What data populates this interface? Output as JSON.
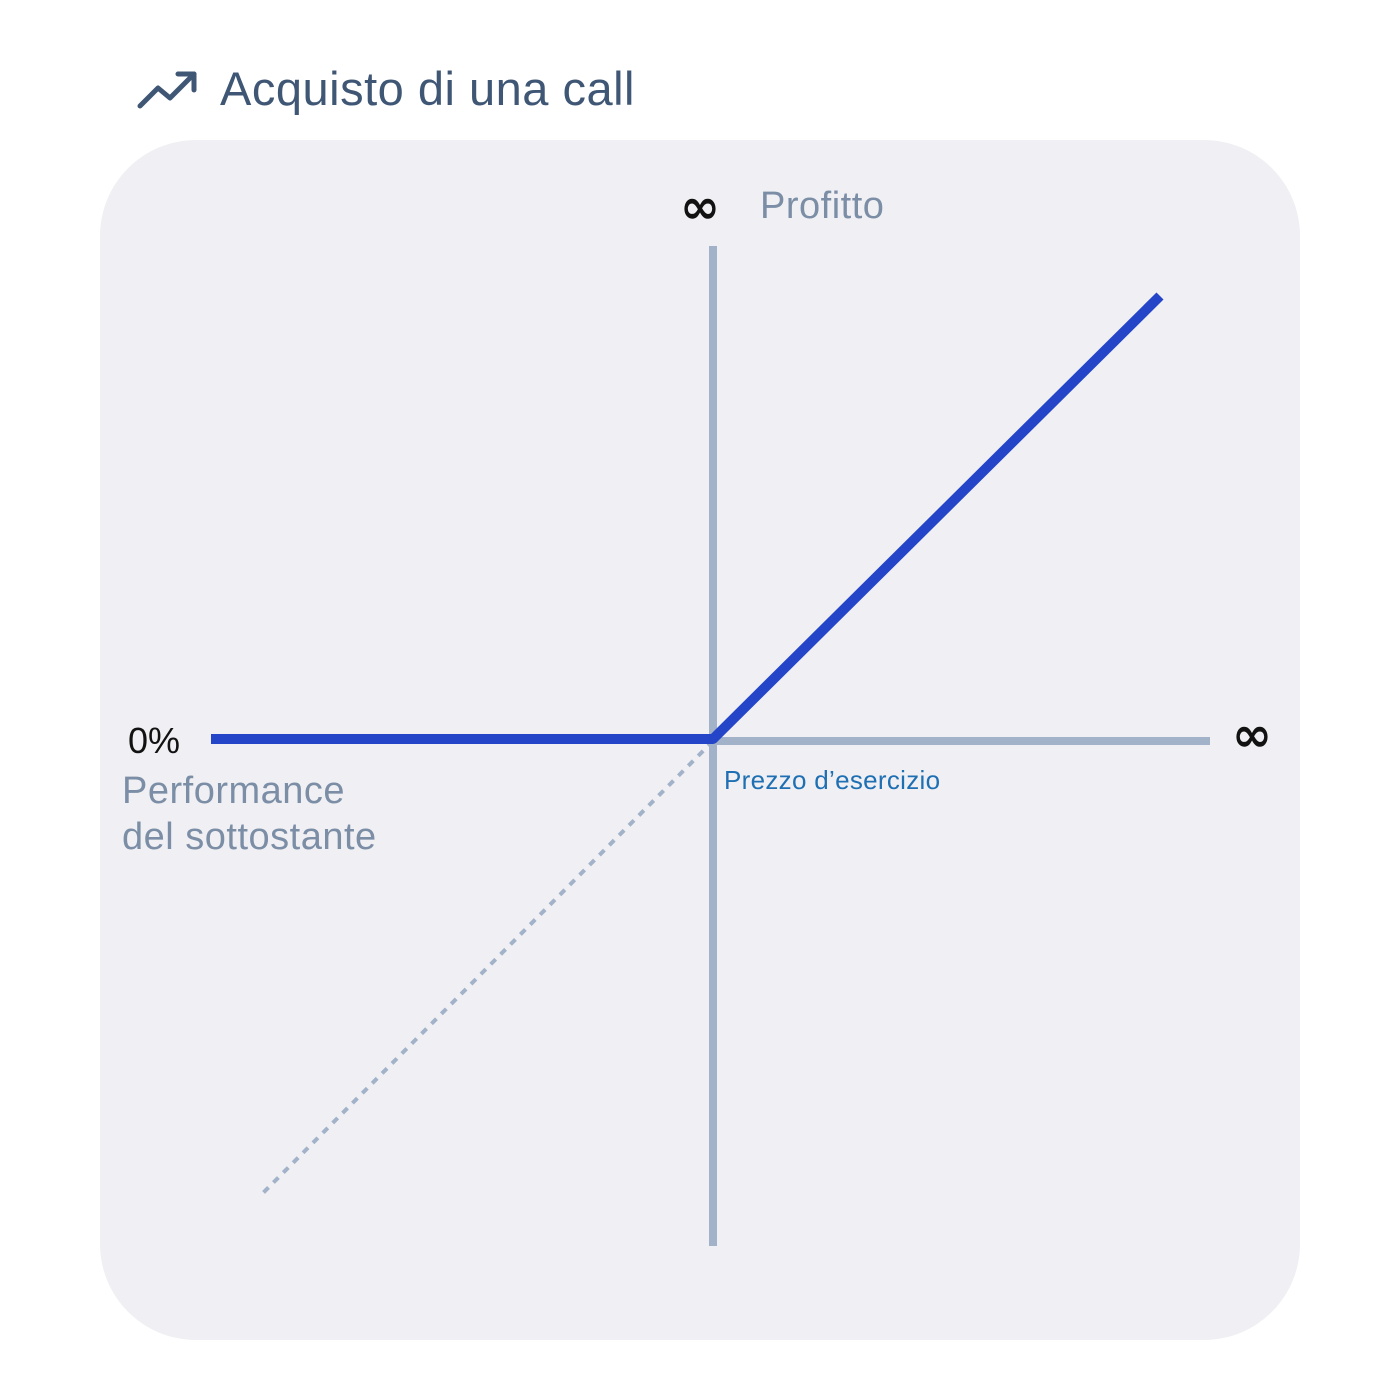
{
  "header": {
    "title": "Acquisto di una call",
    "icon": "trending-up-icon"
  },
  "diagram": {
    "y_axis_label": "Profitto",
    "y_axis_symbol": "∞",
    "x_axis_symbol": "∞",
    "origin_label": "0%",
    "x_axis_label_line1": "Performance",
    "x_axis_label_line2": "del sottostante",
    "strike_label": "Prezzo d’esercizio"
  },
  "colors": {
    "payoff_line": "#2445c8",
    "axes": "#a2b2c9",
    "underlying_dotted": "#a2b2c9",
    "card_background": "#f0f0f4",
    "title_text": "#3f5775",
    "muted_text": "#7b8ea6",
    "strike_text": "#1f6fb3"
  }
}
